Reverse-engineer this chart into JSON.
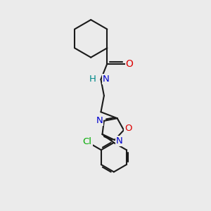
{
  "bg_color": "#ebebeb",
  "atom_colors": {
    "C": "#000000",
    "N": "#0000cc",
    "O": "#dd0000",
    "H": "#008888",
    "Cl": "#00aa00"
  },
  "bond_color": "#1a1a1a",
  "bond_width": 1.5,
  "font_size_atom": 9.5
}
